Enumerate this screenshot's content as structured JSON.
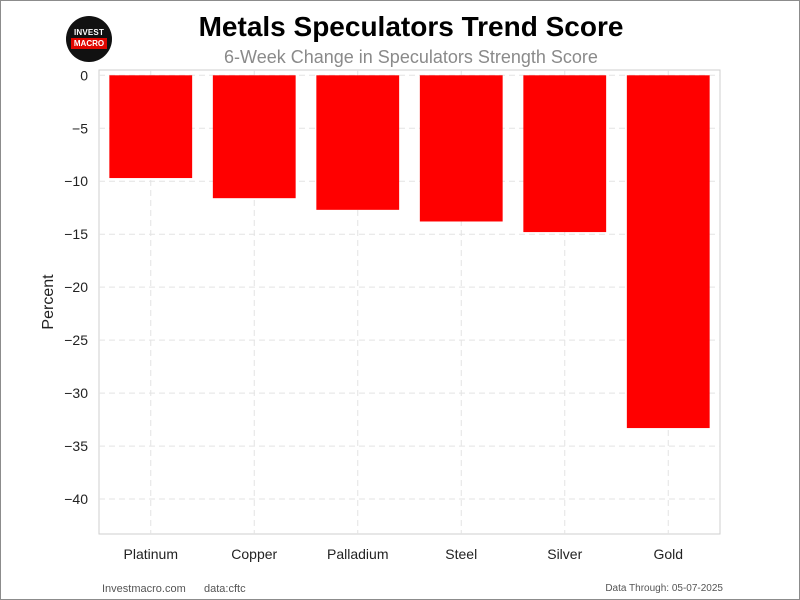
{
  "title": "Metals Speculators Trend Score",
  "subtitle": "6-Week Change in Speculators Strength Score",
  "logo": {
    "line1": "INVEST",
    "line2": "MACRO"
  },
  "footer": {
    "source": "Investmacro.com",
    "data": "data:cftc",
    "date": "Data Through: 05-07-2025"
  },
  "chart_data": {
    "type": "bar",
    "categories": [
      "Platinum",
      "Copper",
      "Palladium",
      "Steel",
      "Silver",
      "Gold"
    ],
    "values": [
      -9.7,
      -11.6,
      -12.7,
      -13.8,
      -14.8,
      -33.3
    ],
    "ylabel": "Percent",
    "ylim": [
      -43.3,
      0.5
    ],
    "yticks": [
      0,
      -5,
      -10,
      -15,
      -20,
      -25,
      -30,
      -35,
      -40
    ],
    "ytick_labels": [
      "0",
      "−5",
      "−10",
      "−15",
      "−20",
      "−25",
      "−30",
      "−35",
      "−40"
    ],
    "bar_color": "#ff0000",
    "grid": true
  }
}
